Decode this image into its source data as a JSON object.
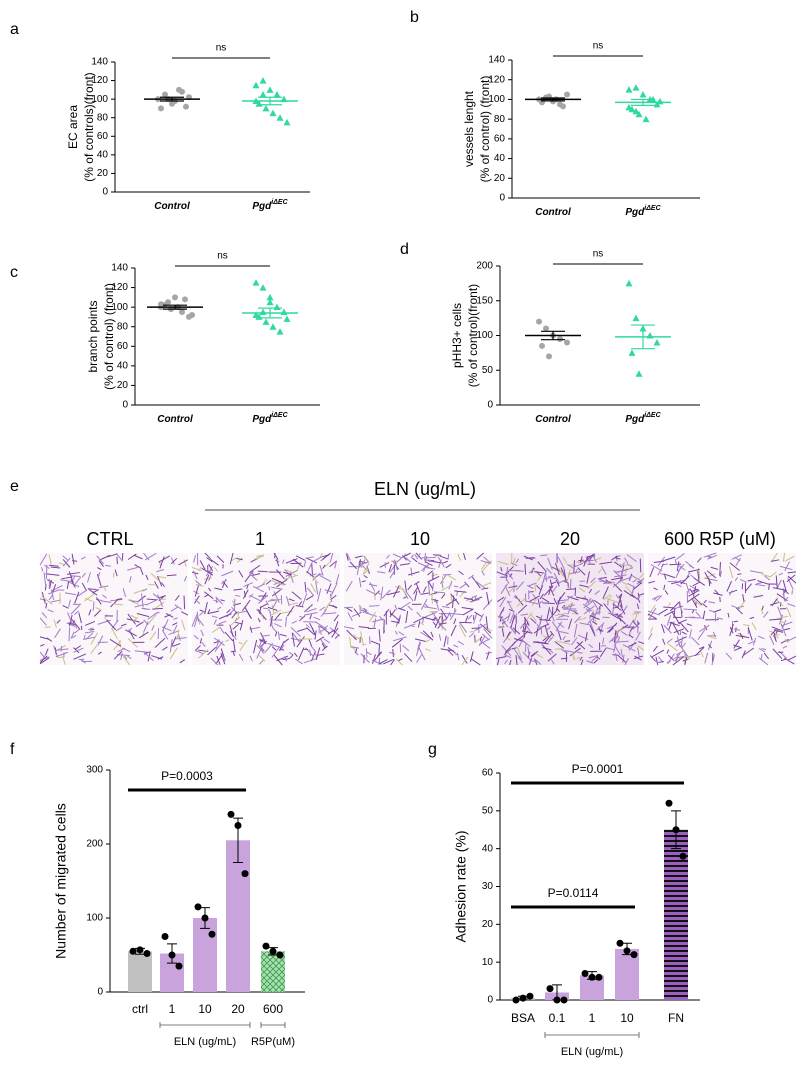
{
  "chart_data": [
    {
      "type": "strip",
      "panel": "a",
      "ylabel": [
        "EC area",
        "(% of controls)(front)"
      ],
      "ylim": [
        0,
        140
      ],
      "yticks": [
        0,
        20,
        40,
        60,
        80,
        100,
        120,
        140
      ],
      "significance": "ns",
      "categories": [
        "Control",
        "Pgd"
      ],
      "category_superscripts": [
        null,
        "iΔEC"
      ],
      "series": [
        {
          "name": "Control",
          "color": "#a6a6a6",
          "marker": "circle",
          "values": [
            100,
            105,
            95,
            110,
            92,
            90,
            100,
            98,
            108,
            102
          ],
          "mean": 100,
          "sem": 2
        },
        {
          "name": "Pgd",
          "color": "#2fd9a0",
          "marker": "triangle",
          "values": [
            115,
            120,
            110,
            105,
            100,
            95,
            90,
            85,
            80,
            75,
            98,
            105
          ],
          "mean": 98,
          "sem": 4
        }
      ]
    },
    {
      "type": "strip",
      "panel": "b",
      "ylabel": [
        "vessels lenght",
        "(% of control) (front)"
      ],
      "ylim": [
        0,
        140
      ],
      "yticks": [
        0,
        20,
        40,
        60,
        80,
        100,
        120,
        140
      ],
      "significance": "ns",
      "categories": [
        "Control",
        "Pgd"
      ],
      "category_superscripts": [
        null,
        "iΔEC"
      ],
      "series": [
        {
          "name": "Control",
          "color": "#a6a6a6",
          "marker": "circle",
          "values": [
            100,
            102,
            98,
            95,
            105,
            97,
            103,
            100,
            93
          ],
          "mean": 100,
          "sem": 1.5
        },
        {
          "name": "Pgd",
          "color": "#2fd9a0",
          "marker": "triangle",
          "values": [
            110,
            112,
            105,
            100,
            95,
            90,
            85,
            80,
            100,
            98,
            92,
            88
          ],
          "mean": 97,
          "sem": 3
        }
      ]
    },
    {
      "type": "strip",
      "panel": "c",
      "ylabel": [
        "branch points",
        "(% of control) (front)"
      ],
      "ylim": [
        0,
        140
      ],
      "yticks": [
        0,
        20,
        40,
        60,
        80,
        100,
        120,
        140
      ],
      "significance": "ns",
      "categories": [
        "Control",
        "Pgd"
      ],
      "category_superscripts": [
        null,
        "iΔEC"
      ],
      "series": [
        {
          "name": "Control",
          "color": "#a6a6a6",
          "marker": "circle",
          "values": [
            100,
            105,
            110,
            95,
            90,
            102,
            98,
            100,
            108,
            92,
            103
          ],
          "mean": 100,
          "sem": 2
        },
        {
          "name": "Pgd",
          "color": "#2fd9a0",
          "marker": "triangle",
          "values": [
            125,
            120,
            110,
            100,
            95,
            90,
            85,
            80,
            75,
            88,
            92,
            95,
            105
          ],
          "mean": 94,
          "sem": 5
        }
      ]
    },
    {
      "type": "strip",
      "panel": "d",
      "ylabel": [
        "pHH3+ cells",
        "(% of control)(front)"
      ],
      "ylim": [
        0,
        200
      ],
      "yticks": [
        0,
        50,
        100,
        150,
        200
      ],
      "significance": "ns",
      "categories": [
        "Control",
        "Pgd"
      ],
      "category_superscripts": [
        null,
        "iΔEC"
      ],
      "series": [
        {
          "name": "Control",
          "color": "#a6a6a6",
          "marker": "circle",
          "values": [
            120,
            110,
            100,
            95,
            90,
            85,
            70
          ],
          "mean": 100,
          "sem": 6
        },
        {
          "name": "Pgd",
          "color": "#2fd9a0",
          "marker": "triangle",
          "values": [
            175,
            125,
            110,
            100,
            90,
            75,
            45
          ],
          "mean": 98,
          "sem": 17
        }
      ]
    },
    {
      "type": "bar",
      "panel": "f",
      "ylabel": "Number of migrated cells",
      "ylim": [
        0,
        300
      ],
      "yticks": [
        0,
        100,
        200,
        300
      ],
      "categories": [
        "ctrl",
        "1",
        "10",
        "20",
        "600"
      ],
      "values": [
        55,
        52,
        100,
        205,
        55
      ],
      "errors": [
        4,
        13,
        14,
        30,
        5
      ],
      "points": [
        [
          55,
          57,
          52
        ],
        [
          75,
          50,
          35
        ],
        [
          115,
          100,
          78
        ],
        [
          240,
          225,
          160
        ],
        [
          62,
          55,
          50
        ]
      ],
      "colors": [
        "#c0c0c0",
        "#c9a4dc",
        "#c9a4dc",
        "#c9a4dc",
        "#a8e0b0"
      ],
      "hatch": {
        "index": 4,
        "style": "crosshatch"
      },
      "annotations": [
        {
          "text": "P=0.0003",
          "from": 0,
          "to": 3
        }
      ],
      "groups": [
        {
          "label": "ELN (ug/mL)",
          "from": 1,
          "to": 3
        },
        {
          "label": "R5P(uM)",
          "from": 4,
          "to": 4
        }
      ]
    },
    {
      "type": "bar",
      "panel": "g",
      "ylabel": "Adhesion rate (%)",
      "ylim": [
        0,
        60
      ],
      "yticks": [
        0,
        10,
        20,
        30,
        40,
        50,
        60
      ],
      "categories": [
        "BSA",
        "0.1",
        "1",
        "10",
        "FN"
      ],
      "values": [
        0.5,
        2,
        6.5,
        13.5,
        45
      ],
      "errors": [
        0.5,
        2,
        1,
        1.5,
        5
      ],
      "points": [
        [
          0,
          0.5,
          1
        ],
        [
          3,
          0,
          0
        ],
        [
          7,
          6,
          6
        ],
        [
          15,
          13,
          12
        ],
        [
          52,
          45,
          38
        ]
      ],
      "colors": [
        "#c9a4dc",
        "#c9a4dc",
        "#c9a4dc",
        "#c9a4dc",
        "#9b5fc0"
      ],
      "hatch": {
        "index": 4,
        "style": "stripes"
      },
      "annotations": [
        {
          "text": "P=0.0001",
          "from": 0,
          "to": 4
        },
        {
          "text": "P=0.0114",
          "from": 0,
          "to": 3
        }
      ],
      "groups": [
        {
          "label": "ELN (ug/mL)",
          "from": 1,
          "to": 3
        }
      ]
    }
  ],
  "image_panel": {
    "panel": "e",
    "group_label": "ELN (ug/mL)",
    "columns": [
      "CTRL",
      "1",
      "10",
      "20",
      "600 R5P (uM)"
    ]
  }
}
